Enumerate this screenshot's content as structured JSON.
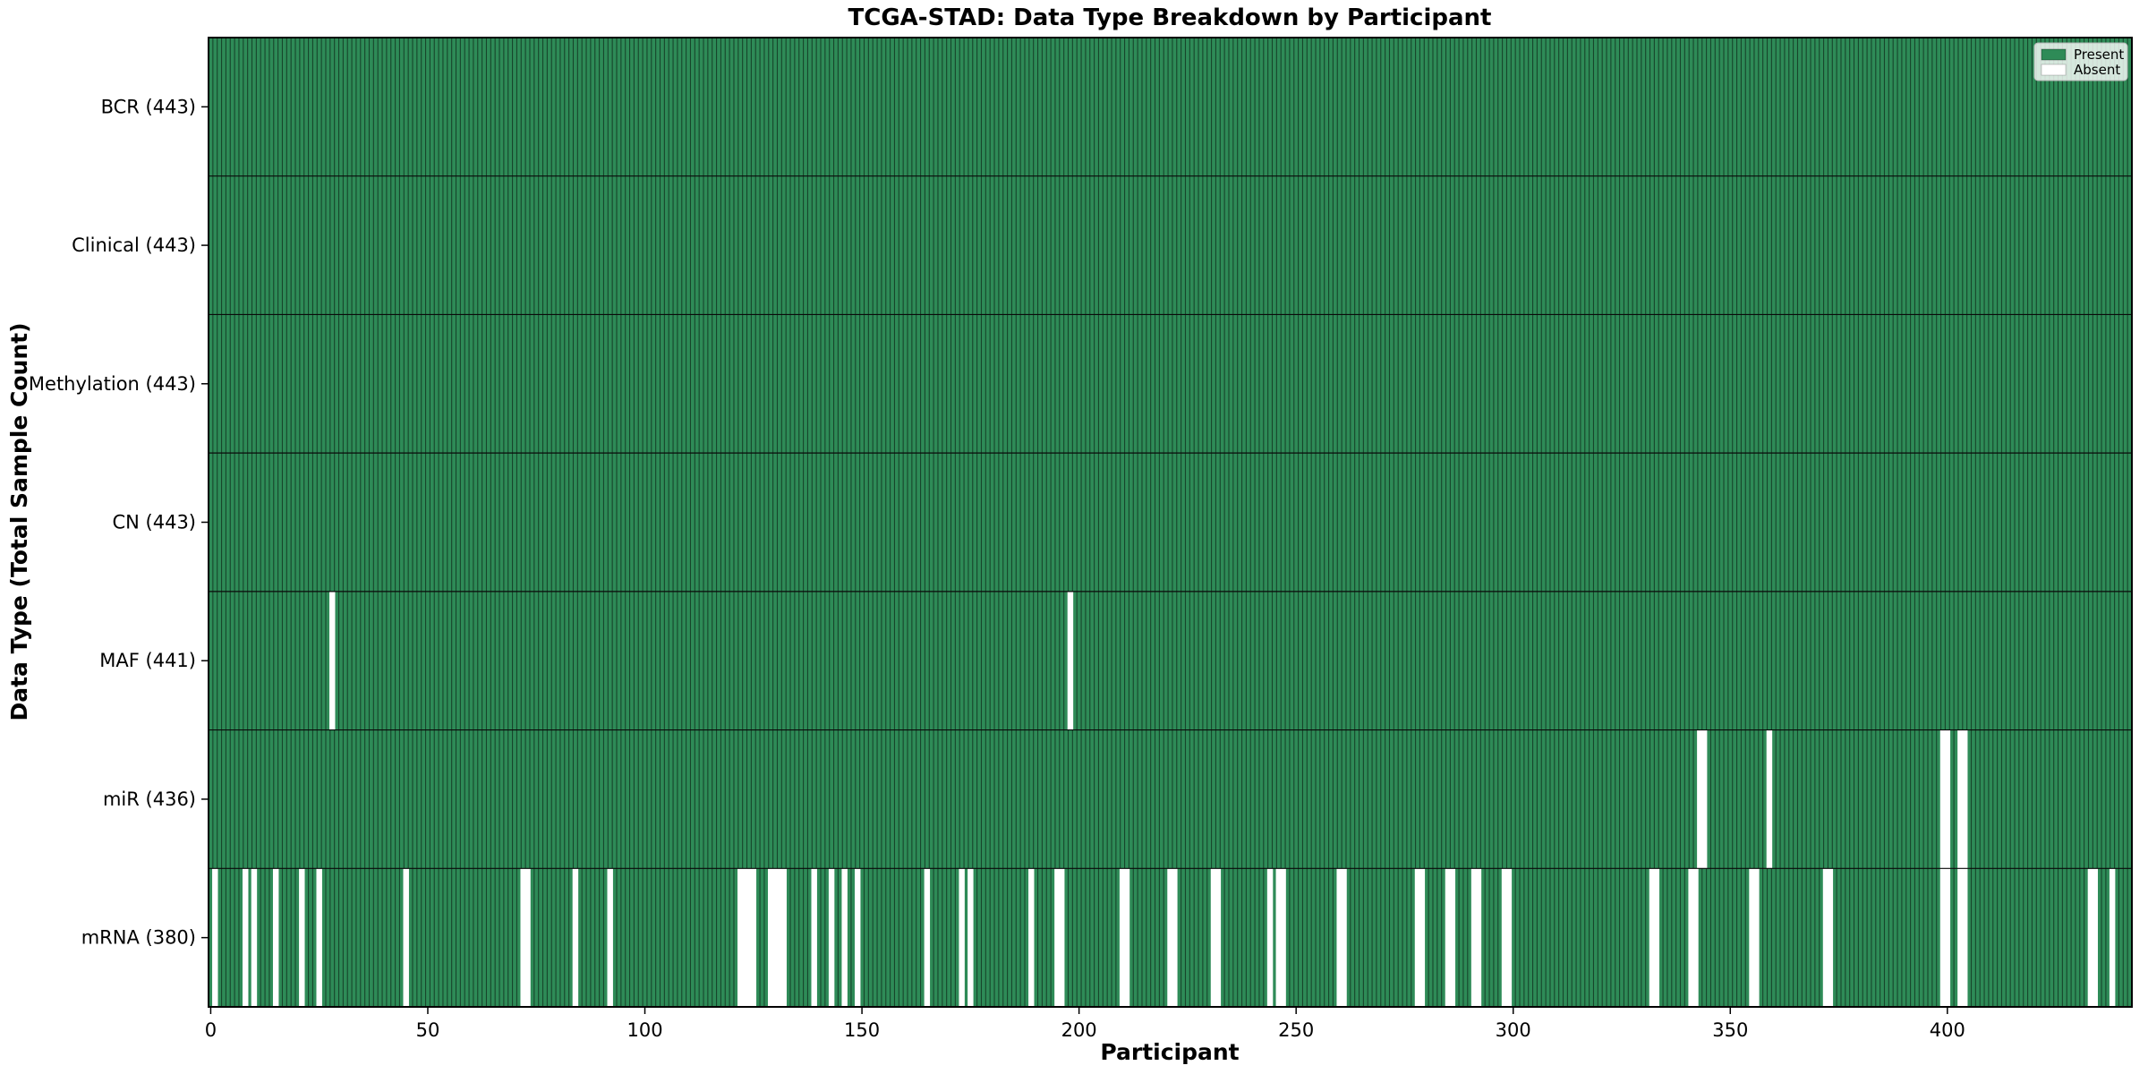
{
  "title": "TCGA-STAD: Data Type Breakdown by Participant",
  "axes": {
    "x_label": "Participant",
    "y_label": "Data Type (Total Sample Count)"
  },
  "legend": {
    "present_label": "Present",
    "absent_label": "Absent"
  },
  "colors": {
    "present": "#2e8b57",
    "absent": "#ffffff",
    "cell_edge": "rgba(0,0,0,0.5)",
    "row_separator": "#0a0a0a",
    "axes_border": "#000000",
    "legend_bg": "rgba(255,255,255,0.8)"
  },
  "chart_data": {
    "type": "heatmap",
    "title": "TCGA-STAD: Data Type Breakdown by Participant",
    "xlabel": "Participant",
    "ylabel": "Data Type (Total Sample Count)",
    "n_participants": 443,
    "x_ticks": [
      0,
      50,
      100,
      150,
      200,
      250,
      300,
      350,
      400
    ],
    "legend_position": "upper right",
    "grid": false,
    "cell_states": [
      "present",
      "absent"
    ],
    "rows": [
      {
        "label": "BCR (443)",
        "data_type": "BCR",
        "total": 443,
        "absent_participants": []
      },
      {
        "label": "Clinical (443)",
        "data_type": "Clinical",
        "total": 443,
        "absent_participants": []
      },
      {
        "label": "Methylation (443)",
        "data_type": "Methylation",
        "total": 443,
        "absent_participants": []
      },
      {
        "label": "CN (443)",
        "data_type": "CN",
        "total": 443,
        "absent_participants": []
      },
      {
        "label": "MAF (441)",
        "data_type": "MAF",
        "total": 441,
        "absent_participants": [
          28,
          198
        ]
      },
      {
        "label": "miR (436)",
        "data_type": "miR",
        "total": 436,
        "absent_participants": [
          343,
          344,
          359,
          399,
          400,
          403,
          404
        ]
      },
      {
        "label": "mRNA (380)",
        "data_type": "mRNA",
        "total": 380,
        "absent_participants": [
          1,
          8,
          10,
          15,
          21,
          25,
          45,
          72,
          73,
          84,
          92,
          122,
          123,
          124,
          125,
          129,
          130,
          131,
          132,
          139,
          143,
          146,
          149,
          165,
          173,
          175,
          189,
          195,
          196,
          210,
          211,
          221,
          222,
          231,
          232,
          244,
          246,
          247,
          260,
          261,
          278,
          279,
          285,
          286,
          291,
          292,
          298,
          299,
          332,
          333,
          341,
          342,
          355,
          356,
          372,
          373,
          399,
          400,
          403,
          404,
          433,
          434,
          438
        ]
      }
    ]
  }
}
